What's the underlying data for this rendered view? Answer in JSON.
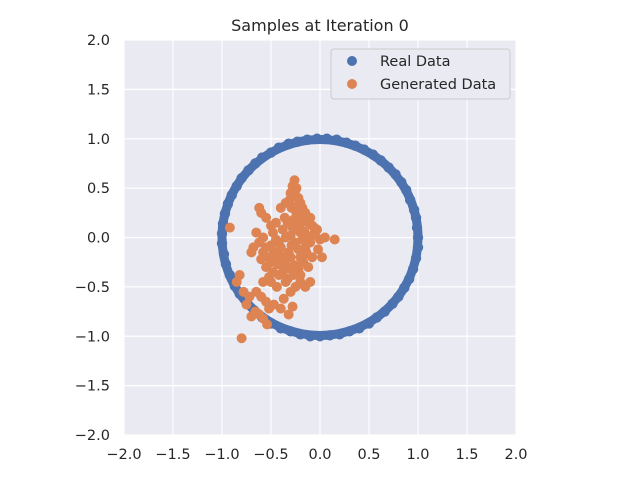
{
  "chart_data": {
    "type": "scatter",
    "title": "Samples at Iteration 0",
    "xlabel": "",
    "ylabel": "",
    "xlim": [
      -2.0,
      2.0
    ],
    "ylim": [
      -2.0,
      2.0
    ],
    "grid": true,
    "legend_position": "top-right",
    "x_ticks": [
      "−2.0",
      "−1.5",
      "−1.0",
      "−0.5",
      "0.0",
      "0.5",
      "1.0",
      "1.5",
      "2.0"
    ],
    "y_ticks": [
      "2.0",
      "1.5",
      "1.0",
      "0.5",
      "0.0",
      "−0.5",
      "−1.0",
      "−1.5",
      "−2.0"
    ],
    "series": [
      {
        "name": "Real Data",
        "color": "#4c72b0",
        "shape": "circle of radius 1",
        "points": [
          [
            1.0,
            0.0
          ],
          [
            0.99,
            0.1
          ],
          [
            0.98,
            0.2
          ],
          [
            0.96,
            0.28
          ],
          [
            0.92,
            0.38
          ],
          [
            0.88,
            0.48
          ],
          [
            0.83,
            0.56
          ],
          [
            0.77,
            0.64
          ],
          [
            0.7,
            0.71
          ],
          [
            0.62,
            0.78
          ],
          [
            0.54,
            0.84
          ],
          [
            0.45,
            0.89
          ],
          [
            0.36,
            0.93
          ],
          [
            0.27,
            0.96
          ],
          [
            0.17,
            0.99
          ],
          [
            0.07,
            1.0
          ],
          [
            -0.03,
            1.0
          ],
          [
            -0.13,
            0.99
          ],
          [
            -0.23,
            0.97
          ],
          [
            -0.32,
            0.95
          ],
          [
            -0.42,
            0.91
          ],
          [
            -0.5,
            0.86
          ],
          [
            -0.59,
            0.81
          ],
          [
            -0.66,
            0.75
          ],
          [
            -0.73,
            0.68
          ],
          [
            -0.8,
            0.6
          ],
          [
            -0.85,
            0.52
          ],
          [
            -0.9,
            0.43
          ],
          [
            -0.94,
            0.34
          ],
          [
            -0.97,
            0.24
          ],
          [
            -0.99,
            0.14
          ],
          [
            -1.0,
            0.04
          ],
          [
            -1.0,
            -0.06
          ],
          [
            -0.98,
            -0.17
          ],
          [
            -0.96,
            -0.27
          ],
          [
            -0.92,
            -0.38
          ],
          [
            -0.87,
            -0.49
          ],
          [
            -0.82,
            -0.57
          ],
          [
            -0.75,
            -0.66
          ],
          [
            -0.67,
            -0.74
          ],
          [
            -0.59,
            -0.81
          ],
          [
            -0.5,
            -0.87
          ],
          [
            -0.4,
            -0.92
          ],
          [
            -0.3,
            -0.95
          ],
          [
            -0.2,
            -0.98
          ],
          [
            -0.1,
            -1.0
          ],
          [
            0.0,
            -1.0
          ],
          [
            0.1,
            -0.99
          ],
          [
            0.2,
            -0.98
          ],
          [
            0.3,
            -0.95
          ],
          [
            0.4,
            -0.92
          ],
          [
            0.5,
            -0.87
          ],
          [
            0.58,
            -0.81
          ],
          [
            0.66,
            -0.75
          ],
          [
            0.74,
            -0.67
          ],
          [
            0.8,
            -0.6
          ],
          [
            0.86,
            -0.51
          ],
          [
            0.91,
            -0.42
          ],
          [
            0.95,
            -0.32
          ],
          [
            0.98,
            -0.21
          ],
          [
            1.0,
            -0.1
          ]
        ]
      },
      {
        "name": "Generated Data",
        "color": "#dd8452",
        "points": [
          [
            -0.3,
            0.02
          ],
          [
            -0.25,
            -0.05
          ],
          [
            -0.28,
            0.1
          ],
          [
            -0.22,
            -0.12
          ],
          [
            -0.32,
            -0.15
          ],
          [
            -0.27,
            0.18
          ],
          [
            -0.2,
            0.05
          ],
          [
            -0.35,
            0.0
          ],
          [
            -0.3,
            -0.2
          ],
          [
            -0.24,
            0.25
          ],
          [
            -0.18,
            -0.02
          ],
          [
            -0.4,
            -0.1
          ],
          [
            -0.33,
            0.15
          ],
          [
            -0.26,
            -0.28
          ],
          [
            -0.21,
            0.12
          ],
          [
            -0.38,
            0.08
          ],
          [
            -0.29,
            -0.08
          ],
          [
            -0.23,
            0.32
          ],
          [
            -0.16,
            0.06
          ],
          [
            -0.42,
            -0.05
          ],
          [
            -0.31,
            0.38
          ],
          [
            -0.27,
            0.45
          ],
          [
            -0.26,
            0.58
          ],
          [
            -0.24,
            0.5
          ],
          [
            -0.29,
            0.3
          ],
          [
            -0.19,
            0.2
          ],
          [
            -0.15,
            -0.1
          ],
          [
            -0.12,
            0.0
          ],
          [
            -0.1,
            -0.05
          ],
          [
            -0.08,
            0.02
          ],
          [
            -0.05,
            0.05
          ],
          [
            0.0,
            -0.02
          ],
          [
            0.05,
            0.0
          ],
          [
            0.15,
            -0.02
          ],
          [
            -0.45,
            -0.2
          ],
          [
            -0.5,
            -0.25
          ],
          [
            -0.55,
            -0.3
          ],
          [
            -0.6,
            -0.22
          ],
          [
            -0.48,
            -0.35
          ],
          [
            -0.52,
            -0.4
          ],
          [
            -0.58,
            -0.45
          ],
          [
            -0.44,
            -0.5
          ],
          [
            -0.35,
            -0.45
          ],
          [
            -0.3,
            -0.55
          ],
          [
            -0.25,
            -0.5
          ],
          [
            -0.2,
            -0.45
          ],
          [
            -0.15,
            -0.5
          ],
          [
            -0.1,
            -0.45
          ],
          [
            -0.38,
            -0.35
          ],
          [
            -0.33,
            -0.3
          ],
          [
            -0.22,
            -0.32
          ],
          [
            -0.17,
            -0.25
          ],
          [
            -0.37,
            -0.62
          ],
          [
            -0.28,
            -0.7
          ],
          [
            -0.32,
            -0.78
          ],
          [
            -0.4,
            -0.72
          ],
          [
            -0.47,
            -0.68
          ],
          [
            -0.55,
            -0.65
          ],
          [
            -0.6,
            -0.6
          ],
          [
            -0.65,
            -0.55
          ],
          [
            -0.72,
            -0.6
          ],
          [
            -0.78,
            -0.55
          ],
          [
            -0.75,
            -0.68
          ],
          [
            -0.7,
            -0.8
          ],
          [
            -0.66,
            -0.75
          ],
          [
            -0.62,
            -0.78
          ],
          [
            -0.58,
            -0.82
          ],
          [
            -0.54,
            -0.88
          ],
          [
            -0.52,
            -0.72
          ],
          [
            -0.8,
            -1.02
          ],
          [
            -0.85,
            -0.45
          ],
          [
            -0.82,
            -0.38
          ],
          [
            -0.92,
            0.1
          ],
          [
            -0.65,
            0.05
          ],
          [
            -0.62,
            0.3
          ],
          [
            -0.6,
            0.25
          ],
          [
            -0.55,
            0.2
          ],
          [
            -0.5,
            0.12
          ],
          [
            -0.48,
            0.05
          ],
          [
            -0.45,
            0.15
          ],
          [
            -0.4,
            0.3
          ],
          [
            -0.36,
            0.2
          ],
          [
            -0.3,
            0.45
          ],
          [
            -0.35,
            0.35
          ],
          [
            -0.45,
            -0.02
          ],
          [
            -0.5,
            -0.08
          ],
          [
            -0.55,
            -0.1
          ],
          [
            -0.58,
            0.0
          ],
          [
            -0.62,
            -0.05
          ],
          [
            -0.68,
            -0.1
          ],
          [
            -0.7,
            -0.15
          ],
          [
            -0.58,
            -0.15
          ],
          [
            -0.53,
            -0.2
          ],
          [
            -0.43,
            -0.27
          ],
          [
            -0.37,
            -0.22
          ],
          [
            -0.2,
            -0.38
          ],
          [
            -0.12,
            -0.3
          ],
          [
            -0.08,
            -0.2
          ],
          [
            -0.02,
            -0.12
          ],
          [
            0.02,
            -0.2
          ],
          [
            -0.06,
            0.1
          ],
          [
            -0.12,
            0.15
          ],
          [
            -0.18,
            0.3
          ],
          [
            -0.2,
            0.35
          ],
          [
            -0.15,
            0.25
          ],
          [
            -0.1,
            0.2
          ],
          [
            -0.08,
            0.12
          ],
          [
            -0.03,
            0.08
          ],
          [
            -0.17,
            -0.18
          ],
          [
            -0.27,
            -0.38
          ],
          [
            -0.33,
            -0.42
          ],
          [
            -0.42,
            -0.38
          ],
          [
            -0.47,
            -0.15
          ],
          [
            -0.5,
            -0.45
          ],
          [
            -0.22,
            0.4
          ],
          [
            -0.25,
            0.48
          ],
          [
            -0.28,
            0.52
          ],
          [
            -0.2,
            0.15
          ],
          [
            -0.24,
            0.08
          ],
          [
            -0.3,
            -0.32
          ],
          [
            -0.35,
            -0.28
          ],
          [
            -0.41,
            -0.18
          ],
          [
            -0.2,
            -0.2
          ],
          [
            -0.14,
            -0.15
          ]
        ]
      }
    ]
  }
}
